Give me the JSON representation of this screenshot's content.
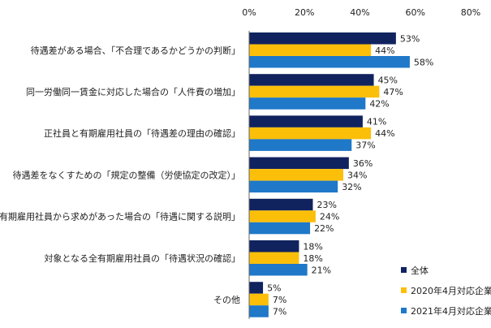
{
  "chart_data": {
    "type": "bar",
    "orientation": "horizontal",
    "title": "",
    "xlabel": "",
    "ylabel": "",
    "xlim": [
      0,
      80
    ],
    "x_ticks": [
      "0%",
      "20%",
      "40%",
      "60%",
      "80%"
    ],
    "x_tick_values": [
      0,
      20,
      40,
      60,
      80
    ],
    "grid": false,
    "legend_position": "bottom-right",
    "categories": [
      "待遇差がある場合、「不合理であるかどうかの判断」",
      "同一労働同一賃金に対応した場合の「人件費の増加」",
      "正社員と有期雇用社員の「待遇差の理由の確認」",
      "待遇差をなくすための「規定の整備（労使協定の改定）」",
      "有期雇用社員から求めがあった場合の「待遇に関する説明」",
      "対象となる全有期雇用社員の「待遇状況の確認」",
      "その他"
    ],
    "series": [
      {
        "name": "全体",
        "color": "#10235f",
        "values": [
          53,
          45,
          41,
          36,
          23,
          18,
          5
        ],
        "labels": [
          "53%",
          "45%",
          "41%",
          "36%",
          "23%",
          "18%",
          "5%"
        ]
      },
      {
        "name": "2020年4月対応企業",
        "color": "#fbbf0a",
        "values": [
          44,
          47,
          44,
          34,
          24,
          18,
          7
        ],
        "labels": [
          "44%",
          "47%",
          "44%",
          "34%",
          "24%",
          "18%",
          "7%"
        ]
      },
      {
        "name": "2021年4月対応企業",
        "color": "#1f78c8",
        "values": [
          58,
          42,
          37,
          32,
          22,
          21,
          7
        ],
        "labels": [
          "58%",
          "42%",
          "37%",
          "32%",
          "22%",
          "21%",
          "7%"
        ]
      }
    ]
  }
}
